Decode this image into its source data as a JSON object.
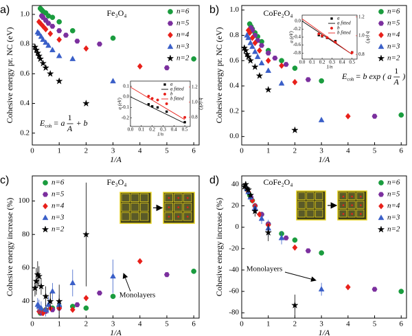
{
  "chart_data": [
    {
      "type": "scatter",
      "label": "a)",
      "title": "Fe₃O₄",
      "xlabel": "1/A",
      "ylabel": "Cohesive energy pr. NC (eV)",
      "xlim": [
        0,
        6.2
      ],
      "xticks": [
        0,
        1,
        2,
        3,
        4,
        5,
        6
      ],
      "ylim": [
        0.12,
        1.06
      ],
      "yticks": [
        0.2,
        0.4,
        0.6,
        0.8,
        {
          "value": 1,
          "label": "1.0"
        }
      ],
      "series": [
        {
          "name": "n=6",
          "color": "#1a9c3e",
          "marker": "circle",
          "x": [
            0.3,
            0.35,
            0.4,
            0.5,
            0.6,
            0.75,
            1.0,
            1.5,
            3.0,
            6.0
          ],
          "values": [
            1.04,
            1.03,
            1.02,
            1.01,
            0.99,
            0.98,
            0.95,
            0.89,
            0.84,
            0.7
          ]
        },
        {
          "name": "n=5",
          "color": "#7b2f9e",
          "marker": "hexagon",
          "x": [
            0.35,
            0.4,
            0.5,
            0.6,
            0.75,
            1.0,
            1.25,
            1.67,
            2.5,
            5.0
          ],
          "values": [
            0.99,
            0.98,
            0.96,
            0.94,
            0.92,
            0.89,
            0.86,
            0.82,
            0.8,
            0.64
          ]
        },
        {
          "name": "n=4",
          "color": "#e8201a",
          "marker": "diamond",
          "x": [
            0.25,
            0.3,
            0.4,
            0.5,
            0.67,
            1.0,
            2.0,
            4.0
          ],
          "values": [
            0.95,
            0.94,
            0.92,
            0.9,
            0.87,
            0.83,
            0.77,
            0.65
          ]
        },
        {
          "name": "n=3",
          "color": "#3a5fc8",
          "marker": "triangle",
          "x": [
            0.2,
            0.25,
            0.33,
            0.4,
            0.5,
            0.6,
            0.75,
            1.0,
            1.5,
            3.0
          ],
          "values": [
            0.88,
            0.87,
            0.85,
            0.83,
            0.81,
            0.79,
            0.76,
            0.72,
            0.7,
            0.55
          ]
        },
        {
          "name": "n=2",
          "color": "#000000",
          "marker": "star",
          "x": [
            0.1,
            0.15,
            0.2,
            0.25,
            0.3,
            0.4,
            0.5,
            0.67,
            1.0,
            2.0
          ],
          "values": [
            0.78,
            0.76,
            0.74,
            0.72,
            0.7,
            0.67,
            0.64,
            0.6,
            0.55,
            0.4
          ]
        }
      ],
      "equation": {
        "lhs": "E",
        "sub": "coh",
        "pre": "= a",
        "num": "1",
        "den": "A",
        "post": "+ b"
      },
      "inset": {
        "xlabel": "1/n",
        "ylabel": "a (eV)",
        "y2label": "b (eV)",
        "xlim": [
          0,
          0.55
        ],
        "xticks": [
          {
            "value": 0,
            "label": "0.0"
          },
          0.1,
          0.2,
          0.3,
          0.4,
          0.5
        ],
        "ylim": [
          -0.28,
          0.15
        ],
        "yticks": [
          0.1,
          {
            "value": 0,
            "label": "0.0"
          },
          -0.1,
          -0.2
        ],
        "y2lim": [
          0.68,
          1.28
        ],
        "y2ticks": [
          0.8,
          {
            "value": 1,
            "label": "1.0"
          },
          1.2
        ],
        "series": [
          {
            "name": "a",
            "color": "#000000",
            "marker": "square",
            "x": [
              0.167,
              0.2,
              0.25,
              0.333,
              0.5
            ],
            "values": [
              -0.07,
              -0.09,
              -0.1,
              -0.14,
              -0.24
            ]
          },
          {
            "name": "a fitted",
            "color": "#000000",
            "marker": "line",
            "x": [
              0,
              0.5
            ],
            "values": [
              0,
              -0.25
            ]
          },
          {
            "name": "b",
            "color": "#e8201a",
            "marker": "circle",
            "axis": "y2",
            "x": [
              0.167,
              0.2,
              0.25,
              0.333,
              0.5
            ],
            "values": [
              1.08,
              1.05,
              1.03,
              0.98,
              0.8
            ]
          },
          {
            "name": "b fitted",
            "color": "#e8201a",
            "marker": "line",
            "axis": "y2",
            "x": [
              0,
              0.5
            ],
            "values": [
              1.2,
              0.77
            ]
          }
        ]
      }
    },
    {
      "type": "scatter",
      "label": "b)",
      "title": "CoFe₂O₄",
      "xlabel": "1/A",
      "ylabel": "Cohesive energy pr. NC (eV)",
      "xlim": [
        0,
        6.2
      ],
      "xticks": [
        0,
        1,
        2,
        3,
        4,
        5,
        6
      ],
      "ylim": [
        -0.067,
        1.036
      ],
      "yticks": [
        {
          "value": 0,
          "label": "0.0"
        },
        0.2,
        0.4,
        0.6,
        0.8,
        {
          "value": 1,
          "label": "1.0"
        }
      ],
      "series": [
        {
          "name": "n=6",
          "color": "#1a9c3e",
          "marker": "circle",
          "x": [
            0.3,
            0.35,
            0.4,
            0.5,
            0.6,
            0.75,
            1.0,
            1.5,
            2.0,
            3.0,
            6.0
          ],
          "values": [
            0.89,
            0.87,
            0.85,
            0.82,
            0.79,
            0.75,
            0.68,
            0.6,
            0.54,
            0.44,
            0.17
          ]
        },
        {
          "name": "n=5",
          "color": "#7b2f9e",
          "marker": "hexagon",
          "x": [
            0.35,
            0.4,
            0.5,
            0.6,
            0.75,
            1.0,
            1.25,
            1.67,
            2.5,
            5.0
          ],
          "values": [
            0.86,
            0.84,
            0.8,
            0.76,
            0.72,
            0.66,
            0.62,
            0.57,
            0.45,
            0.16
          ]
        },
        {
          "name": "n=4",
          "color": "#e8201a",
          "marker": "diamond",
          "x": [
            0.25,
            0.3,
            0.4,
            0.5,
            0.67,
            1.0,
            1.5,
            2.0,
            4.0
          ],
          "values": [
            0.84,
            0.82,
            0.78,
            0.74,
            0.68,
            0.6,
            0.56,
            0.43,
            0.16
          ]
        },
        {
          "name": "n=3",
          "color": "#3a5fc8",
          "marker": "triangle",
          "x": [
            0.2,
            0.25,
            0.33,
            0.4,
            0.5,
            0.6,
            0.75,
            1.0,
            1.5,
            3.0
          ],
          "values": [
            0.8,
            0.78,
            0.74,
            0.71,
            0.67,
            0.63,
            0.58,
            0.52,
            0.42,
            0.13
          ]
        },
        {
          "name": "n=2",
          "color": "#000000",
          "marker": "star",
          "x": [
            0.1,
            0.15,
            0.2,
            0.25,
            0.33,
            0.5,
            0.67,
            1.0,
            2.0
          ],
          "values": [
            0.7,
            0.68,
            0.65,
            0.63,
            0.6,
            0.55,
            0.48,
            0.37,
            0.05
          ]
        }
      ],
      "equation": {
        "lhs": "E",
        "sub": "coh",
        "pre": "= b exp ( a",
        "num": "1",
        "den": "A",
        "post": ")"
      },
      "inset": {
        "xlabel": "1/n",
        "ylabel": "a (eV)",
        "y2label": "b (eV)",
        "xlim": [
          0,
          0.55
        ],
        "xticks": [
          {
            "value": 0,
            "label": "0.0"
          },
          0.1,
          0.2,
          0.3,
          0.4,
          0.5
        ],
        "ylim": [
          -0.95,
          0.15
        ],
        "yticks": [
          {
            "value": 0,
            "label": "0.0"
          },
          -0.2,
          -0.4,
          -0.6,
          -0.8
        ],
        "y2lim": [
          0.75,
          1.22
        ],
        "y2ticks": [
          0.8,
          {
            "value": 1,
            "label": "1.0"
          },
          1.2
        ],
        "series": [
          {
            "name": "a",
            "color": "#000000",
            "marker": "square",
            "x": [
              0.167,
              0.2,
              0.25,
              0.333,
              0.5
            ],
            "values": [
              -0.35,
              -0.38,
              -0.42,
              -0.5,
              -0.78
            ]
          },
          {
            "name": "a fitted",
            "color": "#000000",
            "marker": "line",
            "x": [
              0,
              0.5
            ],
            "values": [
              0,
              -0.83
            ]
          },
          {
            "name": "b",
            "color": "#e8201a",
            "marker": "circle",
            "axis": "y2",
            "x": [
              0.167,
              0.2,
              0.25,
              0.333,
              0.5
            ],
            "values": [
              1.02,
              1.0,
              0.98,
              0.93,
              0.82
            ]
          },
          {
            "name": "b fitted",
            "color": "#e8201a",
            "marker": "line",
            "axis": "y2",
            "x": [
              0,
              0.5
            ],
            "values": [
              1.18,
              0.8
            ]
          }
        ]
      }
    },
    {
      "type": "scatter",
      "label": "c)",
      "title": "Fe₃O₄",
      "xlabel": "1/A",
      "ylabel": "Cohesive energy increase (%)",
      "xlim": [
        0,
        6.2
      ],
      "xticks": [
        0,
        1,
        2,
        3,
        4,
        5,
        6
      ],
      "ylim": [
        30,
        115
      ],
      "yticks": [
        40,
        60,
        80,
        100
      ],
      "series": [
        {
          "name": "n=6",
          "color": "#1a9c3e",
          "marker": "circle",
          "x": [
            0.3,
            0.4,
            0.5,
            0.75,
            1.0,
            1.5,
            2.0,
            3.0,
            6.0
          ],
          "values": [
            33,
            34,
            35,
            36,
            37,
            37,
            36,
            43,
            58
          ]
        },
        {
          "name": "n=5",
          "color": "#7b2f9e",
          "marker": "hexagon",
          "x": [
            0.35,
            0.5,
            0.75,
            1.0,
            1.67,
            2.5,
            5.0
          ],
          "values": [
            33,
            34,
            35,
            36,
            38,
            45,
            56
          ]
        },
        {
          "name": "n=4",
          "color": "#e8201a",
          "marker": "diamond",
          "x": [
            0.25,
            0.4,
            0.5,
            0.67,
            1.0,
            1.5,
            2.0,
            4.0
          ],
          "values": [
            34,
            33,
            35,
            36,
            36,
            35,
            42,
            64
          ]
        },
        {
          "name": "n=3",
          "color": "#3a5fc8",
          "marker": "triangle",
          "x": [
            0.2,
            0.25,
            0.33,
            0.5,
            0.6,
            0.75,
            1.0,
            1.5,
            3.0
          ],
          "values": [
            38,
            37,
            36,
            35,
            38,
            46,
            38,
            51,
            55
          ],
          "errors": [
            4,
            4,
            4,
            4,
            5,
            5,
            6,
            8,
            10
          ]
        },
        {
          "name": "n=2",
          "color": "#000000",
          "marker": "star",
          "x": [
            0.1,
            0.15,
            0.2,
            0.25,
            0.33,
            0.5,
            0.67,
            1.0,
            2.0
          ],
          "values": [
            48,
            52,
            56,
            55,
            49,
            43,
            40,
            40,
            80
          ],
          "errors": [
            5,
            8,
            8,
            6,
            5,
            6,
            5,
            10,
            31
          ]
        }
      ],
      "annotation": "Monolayers"
    },
    {
      "type": "scatter",
      "label": "d)",
      "title": "CoFe₂O₄",
      "xlabel": "1/A",
      "ylabel": "Cohesive energy increase (%)",
      "xlim": [
        0,
        6.2
      ],
      "xticks": [
        0,
        1,
        2,
        3,
        4,
        5,
        6
      ],
      "ylim": [
        -85,
        48
      ],
      "yticks": [
        -80,
        -60,
        -40,
        -20,
        0,
        20,
        40
      ],
      "series": [
        {
          "name": "n=6",
          "color": "#1a9c3e",
          "marker": "circle",
          "x": [
            0.3,
            0.4,
            0.5,
            0.75,
            1.0,
            1.5,
            2.0,
            3.0,
            6.0
          ],
          "values": [
            30,
            25,
            20,
            12,
            3,
            -6,
            -12,
            -24,
            -60
          ]
        },
        {
          "name": "n=5",
          "color": "#7b2f9e",
          "marker": "hexagon",
          "x": [
            0.35,
            0.5,
            0.75,
            1.0,
            1.67,
            2.5,
            5.0
          ],
          "values": [
            28,
            20,
            12,
            3,
            -10,
            -22,
            -58
          ]
        },
        {
          "name": "n=4",
          "color": "#e8201a",
          "marker": "diamond",
          "x": [
            0.25,
            0.4,
            0.5,
            0.67,
            1.0,
            2.0,
            4.0
          ],
          "values": [
            33,
            25,
            20,
            12,
            2,
            -19,
            -56
          ]
        },
        {
          "name": "n=3",
          "color": "#3a5fc8",
          "marker": "triangle",
          "x": [
            0.2,
            0.25,
            0.33,
            0.5,
            0.75,
            1.0,
            1.5,
            3.0
          ],
          "values": [
            36,
            33,
            28,
            18,
            8,
            -1,
            -10,
            -58
          ],
          "errors": [
            3,
            3,
            3,
            4,
            5,
            8,
            6,
            6
          ]
        },
        {
          "name": "n=2",
          "color": "#000000",
          "marker": "star",
          "x": [
            0.1,
            0.15,
            0.2,
            0.25,
            0.33,
            0.5,
            1.0,
            2.0
          ],
          "values": [
            38,
            40,
            36,
            35,
            30,
            15,
            -5,
            -73
          ],
          "errors": [
            3,
            3,
            3,
            3,
            3,
            5,
            8,
            10
          ]
        }
      ],
      "annotation": "Monolayers"
    }
  ]
}
